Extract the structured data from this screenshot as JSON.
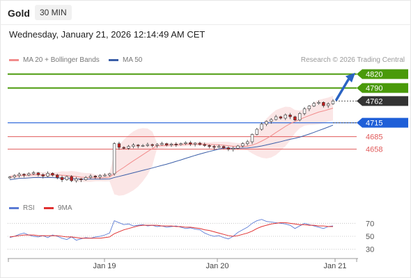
{
  "header": {
    "instrument": "Gold",
    "timeframe": "30 MIN",
    "datetime": "Wednesday, January 21, 2026 12:14:49 AM CET",
    "credit": "Research © 2026 Trading Central"
  },
  "legend": {
    "ma20_label": "MA 20 + Bollinger Bands",
    "ma50_label": "MA 50",
    "rsi_label": "RSI",
    "ma9_label": "9MA"
  },
  "colors": {
    "resistance": "#4a9a0a",
    "current": "#333333",
    "pivot": "#1f5fd8",
    "support": "#e05a5a",
    "ma20": "#f28c8c",
    "ma50": "#3b5ea8",
    "bollinger_fill": "#fbe3e3",
    "rsi": "#5b7bd5",
    "rsi_ma": "#e03030",
    "candle_up": "#2f8a2f",
    "candle_down": "#c42020",
    "arrow": "#2a63c3"
  },
  "chart_data": [
    {
      "type": "candlestick",
      "title": "Gold",
      "timeframe": "30 MIN",
      "x_tick_labels": [
        "Jan 19",
        "Jan 20",
        "Jan 21"
      ],
      "ylim": [
        4560,
        4830
      ],
      "levels": {
        "resistance": [
          4820,
          4790
        ],
        "current": 4762,
        "pivot": 4715,
        "support": [
          4685,
          4658
        ]
      },
      "series": [
        {
          "name": "MA 20 + Bollinger Bands",
          "style": "line_with_bands"
        },
        {
          "name": "MA 50",
          "style": "line"
        }
      ],
      "close_path": [
        4598,
        4601,
        4604,
        4602,
        4605,
        4607,
        4603,
        4600,
        4606,
        4602,
        4597,
        4592,
        4599,
        4590,
        4594,
        4592,
        4597,
        4600,
        4598,
        4601,
        4602,
        4605,
        4670,
        4662,
        4660,
        4664,
        4667,
        4665,
        4666,
        4668,
        4666,
        4668,
        4670,
        4667,
        4669,
        4668,
        4670,
        4672,
        4669,
        4671,
        4668,
        4666,
        4664,
        4662,
        4664,
        4661,
        4658,
        4660,
        4665,
        4670,
        4674,
        4690,
        4701,
        4712,
        4718,
        4722,
        4728,
        4725,
        4732,
        4728,
        4721,
        4735,
        4745,
        4751,
        4757,
        4759,
        4752,
        4756,
        4762
      ],
      "projection": {
        "from": 4762,
        "to": 4820
      }
    },
    {
      "type": "line",
      "title": "RSI",
      "ylim": [
        20,
        80
      ],
      "y_tick_labels": [
        "70",
        "50",
        "30"
      ],
      "series": [
        {
          "name": "RSI",
          "values": [
            48,
            50,
            53,
            55,
            52,
            50,
            49,
            51,
            48,
            52,
            50,
            47,
            45,
            49,
            44,
            46,
            48,
            47,
            49,
            50,
            52,
            55,
            74,
            71,
            68,
            69,
            66,
            67,
            68,
            66,
            67,
            65,
            66,
            64,
            65,
            66,
            64,
            62,
            63,
            61,
            60,
            55,
            52,
            50,
            51,
            48,
            46,
            50,
            56,
            60,
            64,
            70,
            74,
            76,
            73,
            72,
            71,
            70,
            69,
            67,
            62,
            66,
            70,
            68,
            66,
            64,
            62,
            65,
            66
          ]
        },
        {
          "name": "9MA",
          "values": [
            49,
            50,
            51,
            52,
            52,
            52,
            51,
            51,
            51,
            51,
            51,
            50,
            49,
            49,
            48,
            47,
            47,
            47,
            47,
            47,
            48,
            49,
            54,
            57,
            60,
            62,
            64,
            66,
            67,
            67,
            67,
            67,
            66,
            66,
            66,
            65,
            65,
            64,
            64,
            63,
            62,
            60,
            59,
            57,
            55,
            53,
            51,
            50,
            51,
            53,
            55,
            58,
            62,
            65,
            67,
            69,
            70,
            71,
            71,
            70,
            69,
            68,
            68,
            67,
            67,
            66,
            66,
            65,
            65
          ]
        }
      ]
    }
  ]
}
